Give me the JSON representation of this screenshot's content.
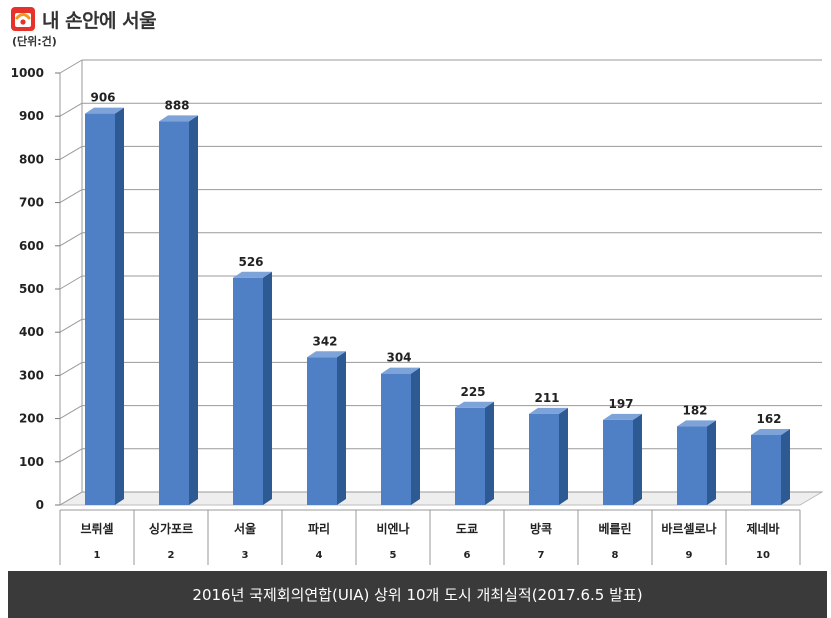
{
  "header": {
    "title": "내 손안에 서울",
    "logo_icon": "seoul-logo-icon",
    "logo_colors": [
      "#e6322b",
      "#f39a1e",
      "#ffffff"
    ]
  },
  "unit_label": "(단위:건)",
  "footer": {
    "caption": "2016년 국제회의연합(UIA) 상위 10개 도시 개최실적(2017.6.5 발표)",
    "background": "#3a3a3a"
  },
  "chart_data": {
    "type": "bar",
    "categories": [
      "브뤼셀",
      "싱가포르",
      "서울",
      "파리",
      "비엔나",
      "도쿄",
      "방콕",
      "베를린",
      "바르셀로나",
      "제네바"
    ],
    "ranks": [
      "1",
      "2",
      "3",
      "4",
      "5",
      "6",
      "7",
      "8",
      "9",
      "10"
    ],
    "values": [
      906,
      888,
      526,
      342,
      304,
      225,
      211,
      197,
      182,
      162
    ],
    "value_labels": [
      "906",
      "888",
      "526",
      "342",
      "304",
      "225",
      "211",
      "197",
      "182",
      "162"
    ],
    "yticks": [
      "0",
      "100",
      "200",
      "300",
      "400",
      "500",
      "600",
      "700",
      "800",
      "900",
      "1000"
    ],
    "ylim": [
      0,
      1000
    ],
    "grid": true,
    "style": "3d-bar",
    "bar_colors": {
      "front": "#4f7fc4",
      "side": "#2e5a93",
      "top": "#7da3d9"
    }
  }
}
